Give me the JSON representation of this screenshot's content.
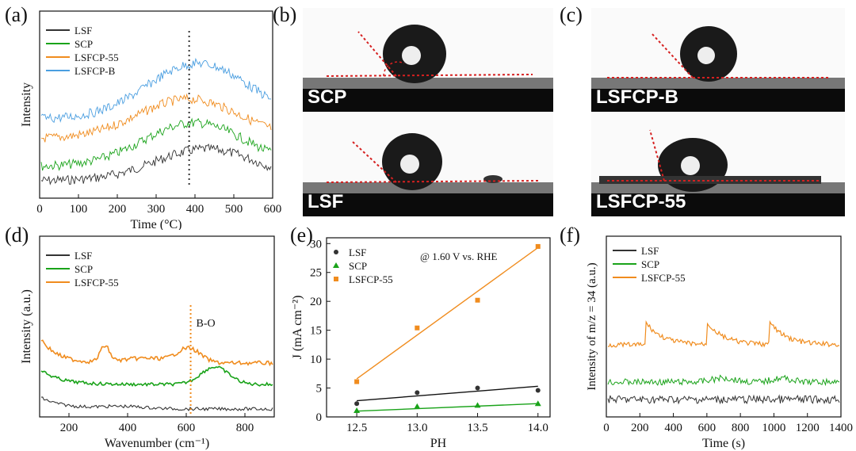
{
  "panels": {
    "a": {
      "label": "(a)",
      "xlabel": "Time (°C)",
      "ylabel": "Intensity",
      "xticks": [
        "0",
        "100",
        "200",
        "300",
        "400",
        "500",
        "600"
      ],
      "legend": [
        "LSF",
        "SCP",
        "LSFCP-55",
        "LSFCP-B"
      ]
    },
    "b": {
      "label": "(b)",
      "top_label": "SCP",
      "bottom_label": "LSF"
    },
    "c": {
      "label": "(c)",
      "top_label": "LSFCP-B",
      "bottom_label": "LSFCP-55"
    },
    "d": {
      "label": "(d)",
      "xlabel": "Wavenumber (cm⁻¹)",
      "ylabel": "Intensity (a.u.)",
      "xticks": [
        "200",
        "400",
        "600",
        "800"
      ],
      "legend": [
        "LSF",
        "SCP",
        "LSFCP-55"
      ],
      "annotation": "B-O"
    },
    "e": {
      "label": "(e)",
      "xlabel": "PH",
      "ylabel": "J (mA cm⁻²)",
      "annotation": "@ 1.60 V vs. RHE",
      "legend": [
        "LSF",
        "SCP",
        "LSFCP-55"
      ]
    },
    "f": {
      "label": "(f)",
      "xlabel": "Time (s)",
      "ylabel": "Intensity of m/z = 34 (a.u.)",
      "xticks": [
        "0",
        "200",
        "400",
        "600",
        "800",
        "1000",
        "1200",
        "1400"
      ],
      "legend": [
        "LSF",
        "SCP",
        "LSFCP-55"
      ]
    }
  },
  "colors": {
    "LSF": "#333333",
    "SCP": "#1aa31a",
    "LSFCP-55": "#f08c1e",
    "LSFCP-B": "#4a9ee0"
  },
  "chart_data": [
    {
      "type": "line",
      "xlabel": "Time (°C)",
      "ylabel": "Intensity",
      "xlim": [
        0,
        600
      ],
      "reference_line_x": 385,
      "series": [
        {
          "name": "LSF",
          "peak_x": 430,
          "offset": 0
        },
        {
          "name": "SCP",
          "peak_x": 400,
          "offset": 1
        },
        {
          "name": "LSFCP-55",
          "peak_x": 385,
          "offset": 2
        },
        {
          "name": "LSFCP-B",
          "peak_x": 410,
          "offset": 3
        }
      ]
    },
    {
      "type": "line",
      "xlabel": "Wavenumber (cm⁻¹)",
      "ylabel": "Intensity (a.u.)",
      "xlim": [
        100,
        900
      ],
      "reference_line_x": 615,
      "annotation": "B-O",
      "series": [
        {
          "name": "LSF"
        },
        {
          "name": "SCP",
          "peak_x": 700
        },
        {
          "name": "LSFCP-55",
          "peak_x": [
            320,
            610
          ]
        }
      ]
    },
    {
      "type": "scatter",
      "xlabel": "PH",
      "ylabel": "J (mA cm⁻²)",
      "xlim": [
        12.25,
        14.1
      ],
      "ylim": [
        0,
        31
      ],
      "xticks": [
        12.5,
        13.0,
        13.5,
        14.0
      ],
      "yticks": [
        0,
        5,
        10,
        15,
        20,
        25,
        30
      ],
      "x": [
        12.5,
        13.0,
        13.5,
        14.0
      ],
      "series": [
        {
          "name": "LSF",
          "values": [
            2.3,
            4.2,
            5.0,
            4.6
          ],
          "fit": [
            2.8,
            5.3
          ],
          "marker": "circle"
        },
        {
          "name": "SCP",
          "values": [
            1.1,
            1.8,
            2.0,
            2.3
          ],
          "fit": [
            1.0,
            2.3
          ],
          "marker": "triangle"
        },
        {
          "name": "LSFCP-55",
          "values": [
            6.1,
            15.4,
            20.2,
            29.5
          ],
          "fit": [
            6.6,
            29.3
          ],
          "marker": "square"
        }
      ],
      "annotation": "@ 1.60 V vs. RHE"
    },
    {
      "type": "line",
      "xlabel": "Time (s)",
      "ylabel": "Intensity of m/z = 34 (a.u.)",
      "xlim": [
        0,
        1400
      ],
      "series": [
        {
          "name": "LSF"
        },
        {
          "name": "SCP"
        },
        {
          "name": "LSFCP-55",
          "peaks_x": [
            230,
            600,
            980
          ]
        }
      ]
    }
  ]
}
